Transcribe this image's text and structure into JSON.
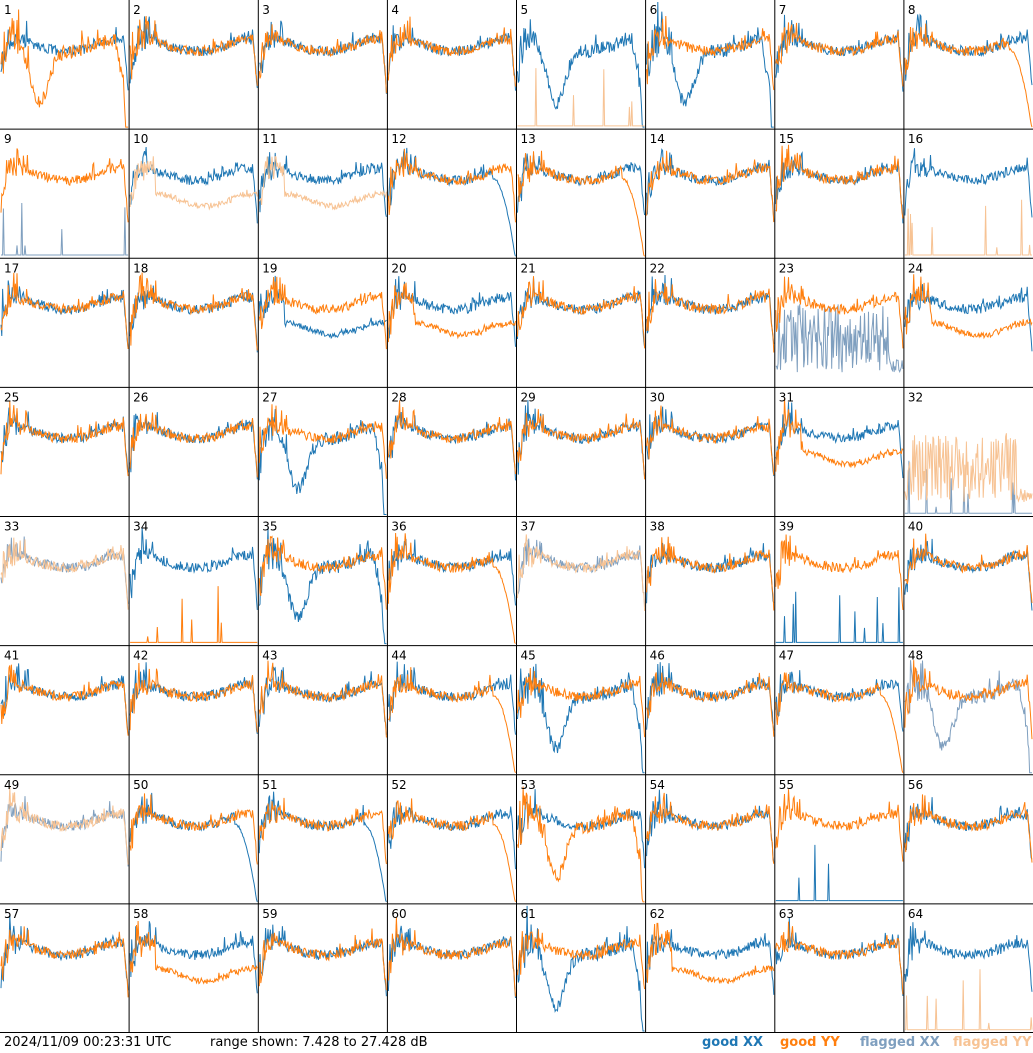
{
  "footer": {
    "timestamp": "2024/11/09 00:23:31 UTC",
    "range_text": "range shown: 7.428 to 27.428 dB"
  },
  "legend": {
    "good_xx": "good XX",
    "good_yy": "good YY",
    "flagged_xx": "flagged XX",
    "flagged_yy": "flagged YY"
  },
  "colors": {
    "good_xx": "#1f77b4",
    "good_yy": "#ff7f0e",
    "flagged_xx": "#7f9fbf",
    "flagged_yy": "#f7c394",
    "grid_line": "#000000"
  },
  "chart_data": {
    "type": "line",
    "grid": "8x8 small multiples",
    "ylim_db": [
      7.428,
      27.428
    ],
    "series_names": [
      "good XX",
      "good YY",
      "flagged XX",
      "flagged YY"
    ],
    "panels": [
      {
        "id": "1",
        "xx": "good",
        "yy": "good",
        "xx_shape": "baseline",
        "yy_shape": "dip"
      },
      {
        "id": "2",
        "xx": "good",
        "yy": "good",
        "xx_shape": "baseline",
        "yy_shape": "baseline"
      },
      {
        "id": "3",
        "xx": "good",
        "yy": "good",
        "xx_shape": "baseline",
        "yy_shape": "baseline"
      },
      {
        "id": "4",
        "xx": "good",
        "yy": "good",
        "xx_shape": "baseline",
        "yy_shape": "baseline"
      },
      {
        "id": "5",
        "xx": "good",
        "yy": "flagged",
        "xx_shape": "dip",
        "yy_shape": "spikes"
      },
      {
        "id": "6",
        "xx": "good",
        "yy": "good",
        "xx_shape": "dip",
        "yy_shape": "baseline"
      },
      {
        "id": "7",
        "xx": "good",
        "yy": "good",
        "xx_shape": "baseline",
        "yy_shape": "baseline"
      },
      {
        "id": "8",
        "xx": "good",
        "yy": "good",
        "xx_shape": "baseline",
        "yy_shape": "lowtail"
      },
      {
        "id": "9",
        "xx": "flagged",
        "yy": "good",
        "xx_shape": "spikes",
        "yy_shape": "baseline"
      },
      {
        "id": "10",
        "xx": "good",
        "yy": "flagged",
        "xx_shape": "baseline",
        "yy_shape": "low"
      },
      {
        "id": "11",
        "xx": "good",
        "yy": "flagged",
        "xx_shape": "baseline",
        "yy_shape": "low"
      },
      {
        "id": "12",
        "xx": "good",
        "yy": "good",
        "xx_shape": "lowtail",
        "yy_shape": "baseline"
      },
      {
        "id": "13",
        "xx": "good",
        "yy": "good",
        "xx_shape": "baseline",
        "yy_shape": "lowtail"
      },
      {
        "id": "14",
        "xx": "good",
        "yy": "good",
        "xx_shape": "baseline",
        "yy_shape": "baseline"
      },
      {
        "id": "15",
        "xx": "good",
        "yy": "good",
        "xx_shape": "baseline",
        "yy_shape": "baseline"
      },
      {
        "id": "16",
        "xx": "good",
        "yy": "flagged",
        "xx_shape": "baseline",
        "yy_shape": "spikes"
      },
      {
        "id": "17",
        "xx": "good",
        "yy": "good",
        "xx_shape": "baseline",
        "yy_shape": "baseline"
      },
      {
        "id": "18",
        "xx": "good",
        "yy": "good",
        "xx_shape": "baseline",
        "yy_shape": "baseline"
      },
      {
        "id": "19",
        "xx": "good",
        "yy": "good",
        "xx_shape": "low",
        "yy_shape": "baseline"
      },
      {
        "id": "20",
        "xx": "good",
        "yy": "good",
        "xx_shape": "baseline",
        "yy_shape": "low"
      },
      {
        "id": "21",
        "xx": "good",
        "yy": "good",
        "xx_shape": "baseline",
        "yy_shape": "baseline"
      },
      {
        "id": "22",
        "xx": "good",
        "yy": "good",
        "xx_shape": "baseline",
        "yy_shape": "baseline"
      },
      {
        "id": "23",
        "xx": "flagged",
        "yy": "good",
        "xx_shape": "noise",
        "yy_shape": "baseline"
      },
      {
        "id": "24",
        "xx": "good",
        "yy": "good",
        "xx_shape": "baseline",
        "yy_shape": "low"
      },
      {
        "id": "25",
        "xx": "good",
        "yy": "good",
        "xx_shape": "baseline",
        "yy_shape": "baseline"
      },
      {
        "id": "26",
        "xx": "good",
        "yy": "good",
        "xx_shape": "baseline",
        "yy_shape": "baseline"
      },
      {
        "id": "27",
        "xx": "good",
        "yy": "good",
        "xx_shape": "dip",
        "yy_shape": "baseline"
      },
      {
        "id": "28",
        "xx": "good",
        "yy": "good",
        "xx_shape": "baseline",
        "yy_shape": "baseline"
      },
      {
        "id": "29",
        "xx": "good",
        "yy": "good",
        "xx_shape": "baseline",
        "yy_shape": "baseline"
      },
      {
        "id": "30",
        "xx": "good",
        "yy": "good",
        "xx_shape": "baseline",
        "yy_shape": "baseline"
      },
      {
        "id": "31",
        "xx": "good",
        "yy": "good",
        "xx_shape": "baseline",
        "yy_shape": "low"
      },
      {
        "id": "32",
        "xx": "flagged",
        "yy": "flagged",
        "xx_shape": "spikes",
        "yy_shape": "noise"
      },
      {
        "id": "33",
        "xx": "flagged",
        "yy": "flagged",
        "xx_shape": "baseline",
        "yy_shape": "baseline"
      },
      {
        "id": "34",
        "xx": "good",
        "yy": "good",
        "xx_shape": "baseline",
        "yy_shape": "spikes"
      },
      {
        "id": "35",
        "xx": "good",
        "yy": "good",
        "xx_shape": "dip",
        "yy_shape": "baseline"
      },
      {
        "id": "36",
        "xx": "good",
        "yy": "good",
        "xx_shape": "baseline",
        "yy_shape": "lowtail"
      },
      {
        "id": "37",
        "xx": "flagged",
        "yy": "flagged",
        "xx_shape": "baseline",
        "yy_shape": "baseline"
      },
      {
        "id": "38",
        "xx": "good",
        "yy": "good",
        "xx_shape": "baseline",
        "yy_shape": "baseline"
      },
      {
        "id": "39",
        "xx": "good",
        "yy": "good",
        "xx_shape": "spikes",
        "yy_shape": "baseline"
      },
      {
        "id": "40",
        "xx": "good",
        "yy": "good",
        "xx_shape": "baseline",
        "yy_shape": "baseline"
      },
      {
        "id": "41",
        "xx": "good",
        "yy": "good",
        "xx_shape": "baseline",
        "yy_shape": "baseline"
      },
      {
        "id": "42",
        "xx": "good",
        "yy": "good",
        "xx_shape": "baseline",
        "yy_shape": "baseline"
      },
      {
        "id": "43",
        "xx": "good",
        "yy": "good",
        "xx_shape": "baseline",
        "yy_shape": "baseline"
      },
      {
        "id": "44",
        "xx": "good",
        "yy": "good",
        "xx_shape": "baseline",
        "yy_shape": "lowtail"
      },
      {
        "id": "45",
        "xx": "good",
        "yy": "good",
        "xx_shape": "dip",
        "yy_shape": "baseline"
      },
      {
        "id": "46",
        "xx": "good",
        "yy": "good",
        "xx_shape": "baseline",
        "yy_shape": "baseline"
      },
      {
        "id": "47",
        "xx": "good",
        "yy": "good",
        "xx_shape": "baseline",
        "yy_shape": "lowtail"
      },
      {
        "id": "48",
        "xx": "flagged",
        "yy": "good",
        "xx_shape": "dip",
        "yy_shape": "baseline"
      },
      {
        "id": "49",
        "xx": "flagged",
        "yy": "flagged",
        "xx_shape": "baseline",
        "yy_shape": "baseline"
      },
      {
        "id": "50",
        "xx": "good",
        "yy": "good",
        "xx_shape": "lowtail",
        "yy_shape": "baseline"
      },
      {
        "id": "51",
        "xx": "good",
        "yy": "good",
        "xx_shape": "lowtail",
        "yy_shape": "baseline"
      },
      {
        "id": "52",
        "xx": "good",
        "yy": "good",
        "xx_shape": "baseline",
        "yy_shape": "lowtail"
      },
      {
        "id": "53",
        "xx": "good",
        "yy": "good",
        "xx_shape": "baseline",
        "yy_shape": "dip"
      },
      {
        "id": "54",
        "xx": "good",
        "yy": "good",
        "xx_shape": "baseline",
        "yy_shape": "baseline"
      },
      {
        "id": "55",
        "xx": "good",
        "yy": "good",
        "xx_shape": "spikes",
        "yy_shape": "baseline"
      },
      {
        "id": "56",
        "xx": "good",
        "yy": "good",
        "xx_shape": "baseline",
        "yy_shape": "baseline"
      },
      {
        "id": "57",
        "xx": "good",
        "yy": "good",
        "xx_shape": "baseline",
        "yy_shape": "baseline"
      },
      {
        "id": "58",
        "xx": "good",
        "yy": "good",
        "xx_shape": "baseline",
        "yy_shape": "low"
      },
      {
        "id": "59",
        "xx": "good",
        "yy": "good",
        "xx_shape": "baseline",
        "yy_shape": "baseline"
      },
      {
        "id": "60",
        "xx": "good",
        "yy": "good",
        "xx_shape": "baseline",
        "yy_shape": "baseline"
      },
      {
        "id": "61",
        "xx": "good",
        "yy": "good",
        "xx_shape": "dip",
        "yy_shape": "baseline"
      },
      {
        "id": "62",
        "xx": "good",
        "yy": "good",
        "xx_shape": "baseline",
        "yy_shape": "low"
      },
      {
        "id": "63",
        "xx": "good",
        "yy": "good",
        "xx_shape": "baseline",
        "yy_shape": "baseline"
      },
      {
        "id": "64",
        "xx": "good",
        "yy": "flagged",
        "xx_shape": "baseline",
        "yy_shape": "spikes"
      }
    ]
  }
}
